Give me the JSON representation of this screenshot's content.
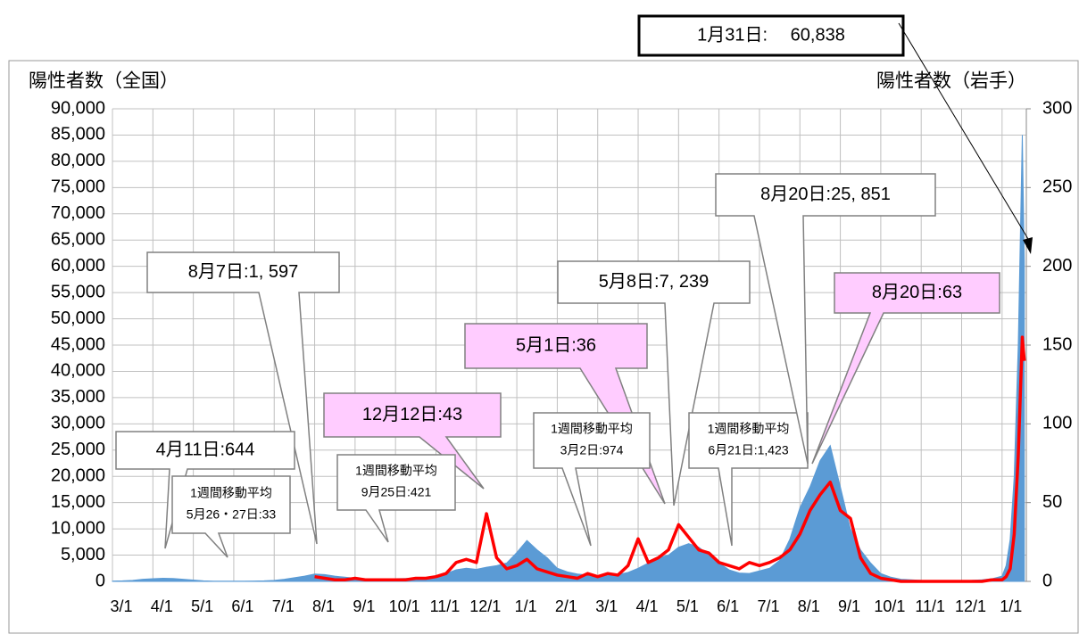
{
  "chart_data": {
    "type": "area-line",
    "y_label": "陽性者数（全国）",
    "y2_label": "陽性者数（岩手）",
    "x": [
      0,
      0.25,
      0.5,
      0.75,
      1,
      1.25,
      1.5,
      1.75,
      2,
      2.25,
      2.5,
      2.75,
      3,
      3.25,
      3.5,
      3.75,
      4,
      4.25,
      4.5,
      4.75,
      5,
      5.25,
      5.5,
      5.75,
      6,
      6.25,
      6.5,
      6.75,
      7,
      7.25,
      7.5,
      7.75,
      8,
      8.25,
      8.5,
      8.75,
      9,
      9.25,
      9.5,
      9.75,
      10,
      10.25,
      10.5,
      10.75,
      11,
      11.25,
      11.5,
      11.75,
      12,
      12.25,
      12.5,
      12.75,
      13,
      13.25,
      13.5,
      13.75,
      14,
      14.25,
      14.5,
      14.75,
      15,
      15.25,
      15.5,
      15.75,
      16,
      16.25,
      16.5,
      16.75,
      17,
      17.25,
      17.5,
      17.75,
      18,
      18.25,
      18.5,
      18.75,
      19,
      19.25,
      19.5,
      19.75,
      20,
      20.25,
      20.5,
      20.75,
      21,
      21.25,
      21.5,
      21.75,
      22,
      22.1,
      22.2,
      22.3,
      22.4,
      22.5,
      22.55
    ],
    "series": [
      {
        "name": "陽性者数（全国）",
        "color": "#5b9bd5",
        "kind": "area",
        "values": [
          50,
          100,
          200,
          400,
          500,
          600,
          550,
          400,
          250,
          100,
          50,
          40,
          40,
          50,
          60,
          100,
          200,
          400,
          700,
          1000,
          1400,
          1300,
          1000,
          800,
          600,
          500,
          500,
          500,
          500,
          550,
          600,
          700,
          900,
          1500,
          2200,
          2500,
          2300,
          2700,
          3000,
          3500,
          5500,
          7800,
          6000,
          4500,
          2500,
          1800,
          1400,
          1200,
          1000,
          1100,
          1300,
          1700,
          2500,
          3500,
          4500,
          5000,
          6500,
          7200,
          6500,
          5000,
          3500,
          2200,
          1600,
          1500,
          2000,
          2500,
          4000,
          8000,
          14000,
          18000,
          23000,
          25851,
          18000,
          10000,
          6000,
          3500,
          1500,
          800,
          400,
          300,
          200,
          150,
          150,
          120,
          150,
          200,
          300,
          500,
          1000,
          3000,
          8000,
          20000,
          45000,
          85000,
          60838
        ]
      },
      {
        "name": "陽性者数（岩手）",
        "color": "#ff0000",
        "kind": "line",
        "axis": "y2",
        "values": [
          null,
          null,
          null,
          null,
          null,
          null,
          null,
          null,
          null,
          null,
          null,
          null,
          null,
          null,
          null,
          null,
          null,
          null,
          null,
          null,
          3,
          2,
          1,
          1,
          2,
          1,
          1,
          1,
          1,
          1,
          2,
          2,
          3,
          5,
          12,
          14,
          12,
          43,
          15,
          8,
          10,
          14,
          8,
          6,
          4,
          3,
          2,
          5,
          3,
          5,
          4,
          10,
          27,
          12,
          15,
          20,
          36,
          28,
          20,
          18,
          12,
          10,
          8,
          12,
          10,
          12,
          15,
          20,
          30,
          45,
          55,
          63,
          45,
          40,
          15,
          5,
          2,
          1,
          0,
          0,
          0,
          0,
          0,
          0,
          0,
          0,
          0,
          1,
          1,
          3,
          8,
          30,
          80,
          155,
          140
        ]
      }
    ],
    "xlim": [
      0,
      22.6
    ],
    "xticks": [
      {
        "value": 0,
        "label": "3/1"
      },
      {
        "value": 1,
        "label": "4/1"
      },
      {
        "value": 2,
        "label": "5/1"
      },
      {
        "value": 3,
        "label": "6/1"
      },
      {
        "value": 4,
        "label": "7/1"
      },
      {
        "value": 5,
        "label": "8/1"
      },
      {
        "value": 6,
        "label": "9/1"
      },
      {
        "value": 7,
        "label": "10/1"
      },
      {
        "value": 8,
        "label": "11/1"
      },
      {
        "value": 9,
        "label": "12/1"
      },
      {
        "value": 10,
        "label": "1/1"
      },
      {
        "value": 11,
        "label": "2/1"
      },
      {
        "value": 12,
        "label": "3/1"
      },
      {
        "value": 13,
        "label": "4/1"
      },
      {
        "value": 14,
        "label": "5/1"
      },
      {
        "value": 15,
        "label": "6/1"
      },
      {
        "value": 16,
        "label": "7/1"
      },
      {
        "value": 17,
        "label": "8/1"
      },
      {
        "value": 18,
        "label": "9/1"
      },
      {
        "value": 19,
        "label": "10/1"
      },
      {
        "value": 20,
        "label": "11/1"
      },
      {
        "value": 21,
        "label": "12/1"
      },
      {
        "value": 22,
        "label": "1/1"
      }
    ],
    "ylim": [
      0,
      90000
    ],
    "yticks": [
      0,
      {
        "value": 5000,
        "label": "5,000"
      },
      {
        "value": 10000,
        "label": "10,000"
      },
      {
        "value": 15000,
        "label": "15,000"
      },
      {
        "value": 20000,
        "label": "20,000"
      },
      {
        "value": 25000,
        "label": "25,000"
      },
      {
        "value": 30000,
        "label": "30,000"
      },
      {
        "value": 35000,
        "label": "35,000"
      },
      {
        "value": 40000,
        "label": "40,000"
      },
      {
        "value": 45000,
        "label": "45,000"
      },
      {
        "value": 50000,
        "label": "50,000"
      },
      {
        "value": 55000,
        "label": "55,000"
      },
      {
        "value": 60000,
        "label": "60,000"
      },
      {
        "value": 65000,
        "label": "65,000"
      },
      {
        "value": 70000,
        "label": "70,000"
      },
      {
        "value": 75000,
        "label": "75,000"
      },
      {
        "value": 80000,
        "label": "80,000"
      },
      {
        "value": 85000,
        "label": "85,000"
      },
      {
        "value": 90000,
        "label": "90,000"
      }
    ],
    "y2lim": [
      0,
      300
    ],
    "y2ticks": [
      0,
      50,
      100,
      150,
      200,
      250,
      300
    ],
    "grid": true,
    "annotations": [
      {
        "lines": [
          "1月31日:　 60,838"
        ]
      },
      {
        "lines": [
          "8月7日:1, 597"
        ]
      },
      {
        "lines": [
          "12月12日:43"
        ]
      },
      {
        "lines": [
          "4月11日:644"
        ]
      },
      {
        "lines": [
          "1週間移動平均",
          "5月26・27日:33"
        ]
      },
      {
        "lines": [
          "1週間移動平均",
          "9月25日:421"
        ]
      },
      {
        "lines": [
          "5月1日:36"
        ]
      },
      {
        "lines": [
          "1週間移動平均",
          "3月2日:974"
        ]
      },
      {
        "lines": [
          "5月8日:7, 239"
        ]
      },
      {
        "lines": [
          "1週間移動平均",
          "6月21日:1,423"
        ]
      },
      {
        "lines": [
          "8月20日:25, 851"
        ]
      },
      {
        "lines": [
          "8月20日:63"
        ]
      }
    ]
  }
}
